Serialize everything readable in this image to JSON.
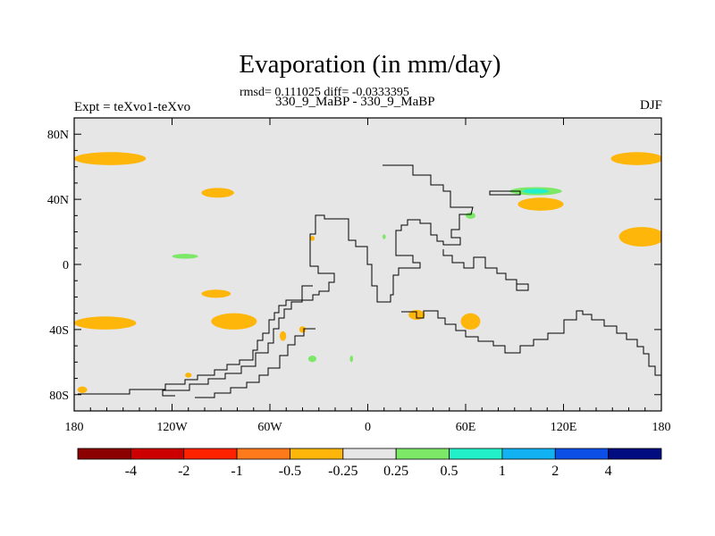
{
  "header": {
    "title": "Evaporation (in mm/day)",
    "stats": "rmsd= 0.111025 diff= -0.0333395",
    "expt": "Expt = teXvo1-teXvo",
    "case": "330_9_MaBP - 330_9_MaBP",
    "season": "DJF"
  },
  "map": {
    "projection": "cylindrical-equidistant",
    "lon_range": [
      -180,
      180
    ],
    "lat_range": [
      -90,
      90
    ],
    "background_color": "#e6e6e6",
    "x_ticks": [
      {
        "value": -180,
        "label": "180"
      },
      {
        "value": -120,
        "label": "120W"
      },
      {
        "value": -60,
        "label": "60W"
      },
      {
        "value": 0,
        "label": "0"
      },
      {
        "value": 60,
        "label": "60E"
      },
      {
        "value": 120,
        "label": "120E"
      },
      {
        "value": 180,
        "label": "180"
      }
    ],
    "y_ticks": [
      {
        "value": 80,
        "label": "80N"
      },
      {
        "value": 40,
        "label": "40N"
      },
      {
        "value": 0,
        "label": "0"
      },
      {
        "value": -40,
        "label": "40S"
      },
      {
        "value": -80,
        "label": "80S"
      }
    ],
    "anomaly_patches": [
      {
        "lon": -158,
        "lat": 65,
        "rlon": 22,
        "rlat": 4,
        "class": "-0.5 to -0.25"
      },
      {
        "lon": -92,
        "lat": 44,
        "rlon": 10,
        "rlat": 3,
        "class": "-0.5 to -0.25"
      },
      {
        "lon": -93,
        "lat": -18,
        "rlon": 9,
        "rlat": 2.5,
        "class": "-0.5 to -0.25"
      },
      {
        "lon": -161,
        "lat": -36,
        "rlon": 19,
        "rlat": 4,
        "class": "-0.5 to -0.25"
      },
      {
        "lon": -82,
        "lat": -35,
        "rlon": 14,
        "rlat": 5,
        "class": "-0.5 to -0.25"
      },
      {
        "lon": -112,
        "lat": 5,
        "rlon": 8,
        "rlat": 1.5,
        "class": "0.25 to 0.5"
      },
      {
        "lon": 30,
        "lat": -31,
        "rlon": 5,
        "rlat": 3,
        "class": "-0.5 to -0.25"
      },
      {
        "lon": 63,
        "lat": -35,
        "rlon": 6,
        "rlat": 5,
        "class": "-0.5 to -0.25"
      },
      {
        "lon": 106,
        "lat": 37,
        "rlon": 14,
        "rlat": 4,
        "class": "-0.5 to -0.25"
      },
      {
        "lon": 168,
        "lat": 17,
        "rlon": 14,
        "rlat": 6,
        "class": "-0.5 to -0.25"
      },
      {
        "lon": 165,
        "lat": 65,
        "rlon": 16,
        "rlat": 4,
        "class": "-0.5 to -0.25"
      },
      {
        "lon": 103,
        "lat": 45,
        "rlon": 16,
        "rlat": 2.5,
        "class": "0.25 to 0.5"
      },
      {
        "lon": 103,
        "lat": 45,
        "rlon": 8,
        "rlat": 1.5,
        "class": "0.5 to 1"
      },
      {
        "lon": 63,
        "lat": 30,
        "rlon": 3,
        "rlat": 2,
        "class": "0.25 to 0.5"
      },
      {
        "lon": -34,
        "lat": -58,
        "rlon": 2.5,
        "rlat": 2,
        "class": "0.25 to 0.5"
      },
      {
        "lon": -52,
        "lat": -44,
        "rlon": 2,
        "rlat": 3,
        "class": "-0.5 to -0.25"
      },
      {
        "lon": -40,
        "lat": -40,
        "rlon": 2,
        "rlat": 2,
        "class": "-0.5 to -0.25"
      },
      {
        "lon": -175,
        "lat": -77,
        "rlon": 3,
        "rlat": 2,
        "class": "-0.5 to -0.25"
      },
      {
        "lon": -110,
        "lat": -68,
        "rlon": 2,
        "rlat": 1.5,
        "class": "-0.5 to -0.25"
      },
      {
        "lon": -34,
        "lat": 16,
        "rlon": 1.5,
        "rlat": 1.5,
        "class": "-0.5 to -0.25"
      },
      {
        "lon": 10,
        "lat": 17,
        "rlon": 1,
        "rlat": 1.5,
        "class": "0.25 to 0.5"
      },
      {
        "lon": -10,
        "lat": -58,
        "rlon": 1,
        "rlat": 2,
        "class": "0.25 to 0.5"
      }
    ]
  },
  "colorbar": {
    "colors": [
      "#8b0000",
      "#cc0000",
      "#ff2200",
      "#ff7a1a",
      "#ffb60a",
      "#e6e6e6",
      "#7de868",
      "#22f0c8",
      "#12b2f2",
      "#0c4fe6",
      "#000c80"
    ],
    "labels": [
      "-4",
      "-2",
      "-1",
      "-0.5",
      "-0.25",
      "0.25",
      "0.5",
      "1",
      "2",
      "4"
    ]
  }
}
